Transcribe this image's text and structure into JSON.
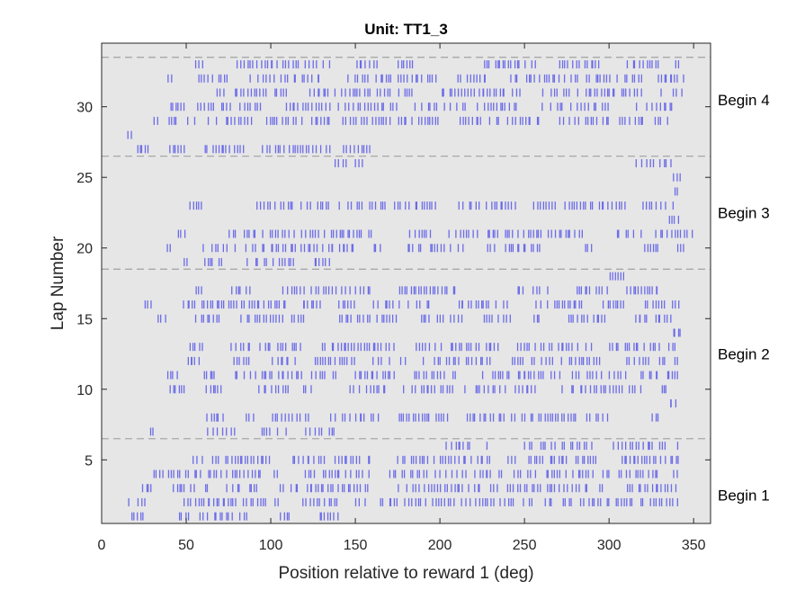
{
  "chart_data": {
    "type": "raster",
    "title": "Unit: TT1_3",
    "xlabel": "Position relative to reward 1 (deg)",
    "ylabel": "Lap Number",
    "xlim": [
      0,
      360
    ],
    "ylim": [
      0.5,
      34.5
    ],
    "xticks": [
      0,
      50,
      100,
      150,
      200,
      250,
      300,
      350
    ],
    "yticks": [
      5,
      10,
      15,
      20,
      25,
      30
    ],
    "grid": false,
    "colors": {
      "plot_background": "#e6e6e6",
      "spike": "#6b6be8",
      "divider": "#a8a8a8"
    },
    "block_dividers": [
      6.5,
      18.5,
      26.5,
      33.5
    ],
    "block_labels": [
      {
        "text": "Begin 1",
        "lap": 2.5
      },
      {
        "text": "Begin 2",
        "lap": 12.5
      },
      {
        "text": "Begin 3",
        "lap": 22.5
      },
      {
        "text": "Begin 4",
        "lap": 30.5
      }
    ],
    "laps": [
      {
        "lap": 1,
        "segments": [
          [
            17,
            25
          ],
          [
            45,
            52
          ],
          [
            57,
            88
          ],
          [
            105,
            112
          ],
          [
            128,
            140
          ]
        ]
      },
      {
        "lap": 2,
        "segments": [
          [
            16,
            27
          ],
          [
            48,
            105
          ],
          [
            118,
            140
          ],
          [
            150,
            195
          ],
          [
            195,
            255
          ],
          [
            262,
            342
          ]
        ]
      },
      {
        "lap": 3,
        "segments": [
          [
            24,
            30
          ],
          [
            40,
            95
          ],
          [
            105,
            160
          ],
          [
            175,
            225
          ],
          [
            230,
            300
          ],
          [
            310,
            340
          ]
        ]
      },
      {
        "lap": 4,
        "segments": [
          [
            30,
            105
          ],
          [
            120,
            162
          ],
          [
            170,
            330
          ],
          [
            338,
            342
          ]
        ]
      },
      {
        "lap": 5,
        "segments": [
          [
            50,
            100
          ],
          [
            112,
            160
          ],
          [
            175,
            230
          ],
          [
            240,
            295
          ],
          [
            305,
            342
          ]
        ]
      },
      {
        "lap": 6,
        "segments": [
          [
            200,
            230
          ],
          [
            250,
            290
          ],
          [
            300,
            342
          ]
        ]
      },
      {
        "lap": 7,
        "segments": [
          [
            28,
            32
          ],
          [
            58,
            80
          ],
          [
            92,
            110
          ],
          [
            118,
            140
          ]
        ]
      },
      {
        "lap": 8,
        "segments": [
          [
            62,
            72
          ],
          [
            85,
            90
          ],
          [
            100,
            125
          ],
          [
            135,
            165
          ],
          [
            175,
            205
          ],
          [
            215,
            300
          ],
          [
            325,
            330
          ]
        ]
      },
      {
        "lap": 9,
        "segments": [
          [
            335,
            340
          ]
        ]
      },
      {
        "lap": 10,
        "segments": [
          [
            40,
            50
          ],
          [
            58,
            75
          ],
          [
            90,
            125
          ],
          [
            145,
            215
          ],
          [
            220,
            260
          ],
          [
            270,
            320
          ],
          [
            330,
            335
          ]
        ]
      },
      {
        "lap": 11,
        "segments": [
          [
            38,
            45
          ],
          [
            60,
            68
          ],
          [
            78,
            140
          ],
          [
            150,
            175
          ],
          [
            182,
            210
          ],
          [
            225,
            272
          ],
          [
            278,
            310
          ],
          [
            318,
            342
          ]
        ]
      },
      {
        "lap": 12,
        "segments": [
          [
            50,
            58
          ],
          [
            78,
            88
          ],
          [
            100,
            115
          ],
          [
            125,
            150
          ],
          [
            160,
            180
          ],
          [
            190,
            230
          ],
          [
            240,
            295
          ],
          [
            310,
            343
          ]
        ]
      },
      {
        "lap": 13,
        "segments": [
          [
            50,
            65
          ],
          [
            75,
            120
          ],
          [
            130,
            175
          ],
          [
            185,
            235
          ],
          [
            245,
            290
          ],
          [
            300,
            330
          ],
          [
            335,
            340
          ]
        ]
      },
      {
        "lap": 14,
        "segments": [
          [
            337,
            343
          ]
        ]
      },
      {
        "lap": 15,
        "segments": [
          [
            33,
            38
          ],
          [
            55,
            72
          ],
          [
            80,
            120
          ],
          [
            140,
            175
          ],
          [
            188,
            215
          ],
          [
            225,
            242
          ],
          [
            255,
            260
          ],
          [
            275,
            300
          ],
          [
            315,
            338
          ]
        ]
      },
      {
        "lap": 16,
        "segments": [
          [
            25,
            30
          ],
          [
            48,
            110
          ],
          [
            118,
            130
          ],
          [
            140,
            150
          ],
          [
            160,
            195
          ],
          [
            210,
            240
          ],
          [
            255,
            285
          ],
          [
            295,
            310
          ],
          [
            320,
            342
          ]
        ]
      },
      {
        "lap": 17,
        "segments": [
          [
            55,
            60
          ],
          [
            75,
            92
          ],
          [
            105,
            160
          ],
          [
            175,
            212
          ],
          [
            245,
            265
          ],
          [
            280,
            300
          ],
          [
            310,
            330
          ]
        ]
      },
      {
        "lap": 18,
        "segments": [
          [
            300,
            310
          ]
        ]
      },
      {
        "lap": 19,
        "segments": [
          [
            48,
            52
          ],
          [
            60,
            72
          ],
          [
            85,
            115
          ],
          [
            125,
            135
          ]
        ]
      },
      {
        "lap": 20,
        "segments": [
          [
            38,
            42
          ],
          [
            60,
            150
          ],
          [
            160,
            165
          ],
          [
            180,
            215
          ],
          [
            228,
            260
          ],
          [
            285,
            290
          ],
          [
            320,
            330
          ],
          [
            340,
            345
          ]
        ]
      },
      {
        "lap": 21,
        "segments": [
          [
            45,
            50
          ],
          [
            75,
            160
          ],
          [
            180,
            198
          ],
          [
            205,
            285
          ],
          [
            300,
            350
          ]
        ]
      },
      {
        "lap": 22,
        "segments": [
          [
            335,
            342
          ]
        ]
      },
      {
        "lap": 23,
        "segments": [
          [
            52,
            60
          ],
          [
            90,
            135
          ],
          [
            140,
            200
          ],
          [
            210,
            245
          ],
          [
            255,
            310
          ],
          [
            320,
            340
          ]
        ]
      },
      {
        "lap": 24,
        "segments": [
          [
            338,
            342
          ]
        ]
      },
      {
        "lap": 25,
        "segments": [
          [
            338,
            343
          ]
        ]
      },
      {
        "lap": 26,
        "segments": [
          [
            138,
            155
          ],
          [
            315,
            338
          ]
        ]
      },
      {
        "lap": 27,
        "segments": [
          [
            20,
            28
          ],
          [
            40,
            50
          ],
          [
            60,
            85
          ],
          [
            95,
            160
          ]
        ]
      },
      {
        "lap": 28,
        "segments": [
          [
            15,
            18
          ]
        ]
      },
      {
        "lap": 29,
        "segments": [
          [
            30,
            90
          ],
          [
            95,
            200
          ],
          [
            210,
            260
          ],
          [
            270,
            335
          ]
        ]
      },
      {
        "lap": 30,
        "segments": [
          [
            40,
            50
          ],
          [
            55,
            95
          ],
          [
            105,
            175
          ],
          [
            185,
            250
          ],
          [
            260,
            300
          ],
          [
            315,
            340
          ]
        ]
      },
      {
        "lap": 31,
        "segments": [
          [
            68,
            110
          ],
          [
            120,
            185
          ],
          [
            200,
            248
          ],
          [
            260,
            320
          ],
          [
            330,
            345
          ]
        ]
      },
      {
        "lap": 32,
        "segments": [
          [
            38,
            42
          ],
          [
            55,
            75
          ],
          [
            85,
            130
          ],
          [
            145,
            200
          ],
          [
            210,
            230
          ],
          [
            240,
            320
          ],
          [
            325,
            345
          ]
        ]
      },
      {
        "lap": 33,
        "segments": [
          [
            55,
            60
          ],
          [
            80,
            135
          ],
          [
            150,
            165
          ],
          [
            175,
            185
          ],
          [
            225,
            260
          ],
          [
            270,
            295
          ],
          [
            310,
            330
          ],
          [
            338,
            342
          ]
        ]
      }
    ]
  }
}
